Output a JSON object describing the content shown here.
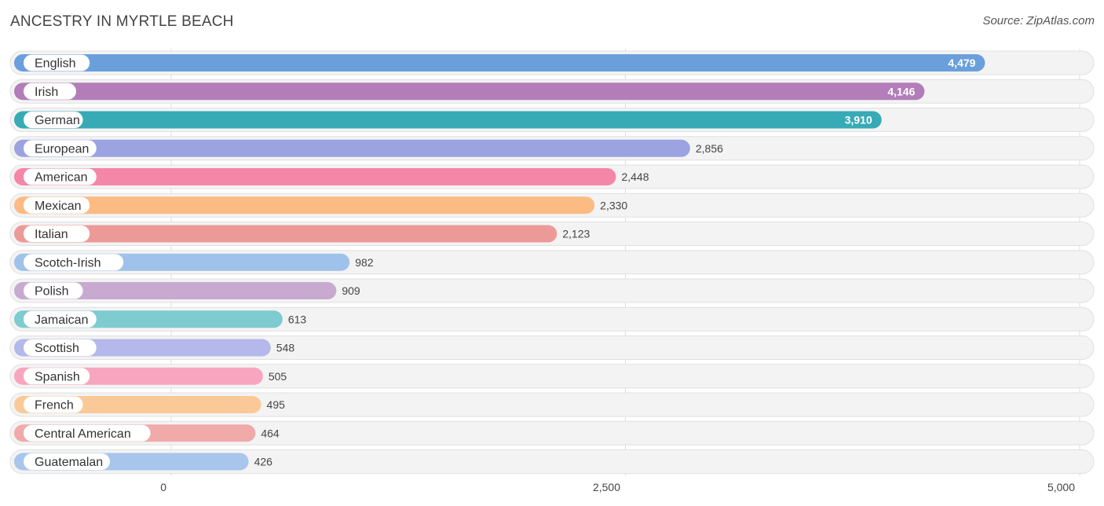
{
  "header": {
    "title": "ANCESTRY IN MYRTLE BEACH",
    "source": "Source: ZipAtlas.com"
  },
  "chart_data": {
    "type": "bar",
    "orientation": "horizontal",
    "title": "ANCESTRY IN MYRTLE BEACH",
    "categories": [
      "English",
      "Irish",
      "German",
      "European",
      "American",
      "Mexican",
      "Italian",
      "Scotch-Irish",
      "Polish",
      "Jamaican",
      "Scottish",
      "Spanish",
      "French",
      "Central American",
      "Guatemalan"
    ],
    "values": [
      4479,
      4146,
      3910,
      2856,
      2448,
      2330,
      2123,
      982,
      909,
      613,
      548,
      505,
      495,
      464,
      426
    ],
    "value_labels": [
      "4,479",
      "4,146",
      "3,910",
      "2,856",
      "2,448",
      "2,330",
      "2,123",
      "982",
      "909",
      "613",
      "548",
      "505",
      "495",
      "464",
      "426"
    ],
    "colors": [
      "#6a9fdc",
      "#b27db8",
      "#37aab5",
      "#9ba3e0",
      "#f486a8",
      "#fbbb82",
      "#ec9a97",
      "#9fc2ea",
      "#c8a9d0",
      "#7ecbd0",
      "#b4b8ea",
      "#f7a6c0",
      "#fbc998",
      "#f0aaaa",
      "#a8c5ec"
    ],
    "xlim": [
      0,
      5000
    ],
    "xticks": [
      0,
      2500,
      5000
    ],
    "xtick_labels": [
      "0",
      "2,500",
      "5,000"
    ],
    "grid": true
  }
}
